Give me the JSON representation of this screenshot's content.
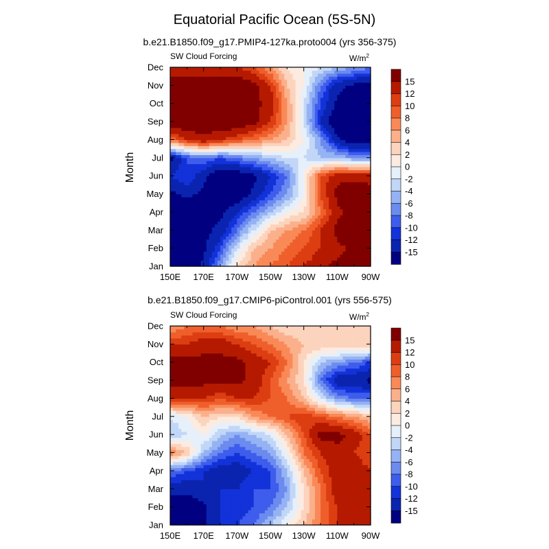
{
  "figure": {
    "title": "Equatorial Pacific Ocean (5S-5N)"
  },
  "chart_data": [
    {
      "type": "heatmap",
      "subtitle": "b.e21.B1850.f09_g17.PMIP4-127ka.proto004 (yrs 356-375)",
      "left_label": "SW Cloud Forcing",
      "unit_base": "W/m",
      "unit_exp": "2",
      "ylabel": "Month",
      "xlabel": "",
      "x_ticks": [
        "150E",
        "170E",
        "170W",
        "150W",
        "130W",
        "110W",
        "90W"
      ],
      "y_ticks": [
        "Jan",
        "Feb",
        "Mar",
        "Apr",
        "May",
        "Jun",
        "Jul",
        "Aug",
        "Sep",
        "Oct",
        "Nov",
        "Dec"
      ],
      "x_values_deg_east": [
        150,
        170,
        190,
        210,
        230,
        250,
        270
      ],
      "columns_lon_deg_east": [
        150,
        160,
        170,
        180,
        190,
        200,
        210,
        220,
        230,
        240,
        250,
        260,
        270
      ],
      "values": [
        [
          -18,
          -18,
          -14,
          -6,
          2,
          6,
          8,
          10,
          12,
          14,
          16,
          17,
          18
        ],
        [
          -18,
          -18,
          -16,
          -10,
          -2,
          4,
          6,
          8,
          10,
          12,
          14,
          16,
          18
        ],
        [
          -18,
          -18,
          -16,
          -14,
          -8,
          -2,
          4,
          6,
          8,
          12,
          16,
          18,
          18
        ],
        [
          -18,
          -18,
          -18,
          -16,
          -12,
          -8,
          -4,
          0,
          2,
          8,
          14,
          16,
          16
        ],
        [
          -16,
          -14,
          -16,
          -18,
          -18,
          -14,
          -10,
          -6,
          0,
          10,
          16,
          18,
          16
        ],
        [
          -12,
          -10,
          -14,
          -18,
          -18,
          -16,
          -12,
          -8,
          0,
          10,
          14,
          14,
          14
        ],
        [
          -16,
          -10,
          -8,
          -10,
          -8,
          -6,
          -4,
          -2,
          -2,
          -4,
          -4,
          -6,
          -6
        ],
        [
          8,
          12,
          14,
          12,
          10,
          8,
          6,
          4,
          0,
          -6,
          -14,
          -18,
          -18
        ],
        [
          18,
          18,
          18,
          18,
          18,
          16,
          12,
          6,
          -2,
          -12,
          -18,
          -18,
          -18
        ],
        [
          18,
          18,
          18,
          18,
          18,
          16,
          14,
          6,
          -2,
          -10,
          -16,
          -18,
          -18
        ],
        [
          18,
          18,
          18,
          18,
          18,
          16,
          12,
          4,
          0,
          -8,
          -14,
          -16,
          -16
        ],
        [
          12,
          12,
          12,
          12,
          12,
          10,
          6,
          2,
          0,
          -2,
          -4,
          -6,
          -8
        ]
      ]
    },
    {
      "type": "heatmap",
      "subtitle": "b.e21.B1850.f09_g17.CMIP6-piControl.001 (yrs 556-575)",
      "left_label": "SW Cloud Forcing",
      "unit_base": "W/m",
      "unit_exp": "2",
      "ylabel": "Month",
      "xlabel": "",
      "x_ticks": [
        "150E",
        "170E",
        "170W",
        "150W",
        "130W",
        "110W",
        "90W"
      ],
      "y_ticks": [
        "Jan",
        "Feb",
        "Mar",
        "Apr",
        "May",
        "Jun",
        "Jul",
        "Aug",
        "Sep",
        "Oct",
        "Nov",
        "Dec"
      ],
      "x_values_deg_east": [
        150,
        170,
        190,
        210,
        230,
        250,
        270
      ],
      "columns_lon_deg_east": [
        150,
        160,
        170,
        180,
        190,
        200,
        210,
        220,
        230,
        240,
        250,
        260,
        270
      ],
      "values": [
        [
          -18,
          -18,
          -16,
          -12,
          -10,
          -8,
          -4,
          0,
          4,
          8,
          12,
          12,
          12
        ],
        [
          -18,
          -18,
          -16,
          -12,
          -12,
          -10,
          -8,
          -4,
          2,
          8,
          12,
          14,
          12
        ],
        [
          -14,
          -14,
          -12,
          -12,
          -12,
          -10,
          -10,
          -6,
          2,
          8,
          14,
          14,
          14
        ],
        [
          -8,
          -10,
          -12,
          -14,
          -14,
          -12,
          -10,
          -4,
          4,
          10,
          14,
          14,
          12
        ],
        [
          8,
          4,
          -4,
          -8,
          -10,
          -8,
          -6,
          0,
          8,
          12,
          14,
          12,
          10
        ],
        [
          -4,
          -2,
          0,
          -4,
          -6,
          -4,
          -2,
          4,
          10,
          16,
          16,
          14,
          10
        ],
        [
          -2,
          0,
          4,
          2,
          2,
          6,
          8,
          10,
          12,
          10,
          8,
          6,
          4
        ],
        [
          12,
          12,
          12,
          10,
          12,
          12,
          10,
          8,
          4,
          -2,
          -6,
          -8,
          -8
        ],
        [
          16,
          16,
          16,
          16,
          16,
          14,
          10,
          6,
          2,
          -8,
          -14,
          -14,
          -16
        ],
        [
          16,
          16,
          16,
          16,
          16,
          14,
          12,
          8,
          2,
          -4,
          -6,
          -8,
          -10
        ],
        [
          12,
          12,
          14,
          14,
          12,
          10,
          8,
          6,
          4,
          4,
          4,
          4,
          4
        ],
        [
          6,
          8,
          8,
          8,
          6,
          6,
          4,
          2,
          2,
          2,
          2,
          2,
          2
        ]
      ]
    }
  ],
  "colorbar": {
    "labels": [
      "15",
      "12",
      "10",
      "8",
      "6",
      "4",
      "2",
      "0",
      "-2",
      "-4",
      "-6",
      "-8",
      "-10",
      "-12",
      "-15"
    ],
    "levels": [
      -15,
      -12,
      -10,
      -8,
      -6,
      -4,
      -2,
      0,
      2,
      4,
      6,
      8,
      10,
      12,
      15
    ],
    "colors_high_to_low": [
      "#800000",
      "#b51a00",
      "#dc3e12",
      "#ef5f2c",
      "#f98a58",
      "#fbb08c",
      "#fcd3bc",
      "#fcebe0",
      "#e6f0fb",
      "#c2d6f7",
      "#95b3f4",
      "#6c8bef",
      "#3e5ded",
      "#1332d9",
      "#0a24b0",
      "#000080"
    ]
  }
}
